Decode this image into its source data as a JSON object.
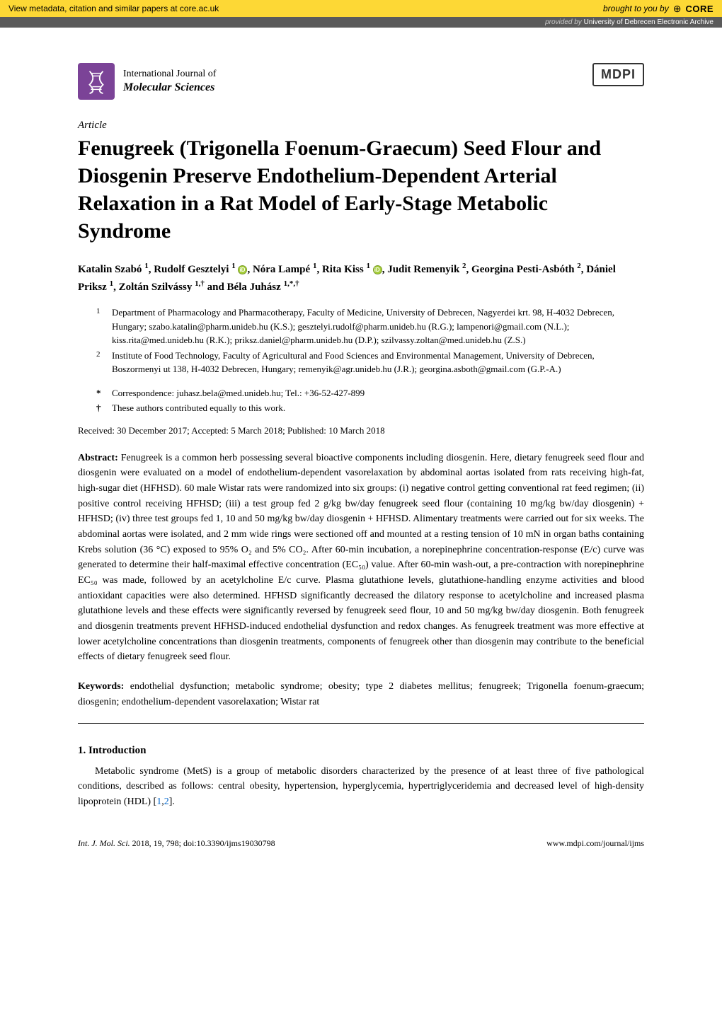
{
  "core_bar": {
    "left_text": "View metadata, citation and similar papers at core.ac.uk",
    "brought_by": "brought to you by",
    "logo": "CORE"
  },
  "provider_bar": {
    "prefix": "provided by",
    "name": "University of Debrecen Electronic Archive"
  },
  "journal": {
    "name_top": "International Journal of",
    "name_bottom": "Molecular Sciences"
  },
  "publisher": "MDPI",
  "article_label": "Article",
  "title": "Fenugreek (Trigonella Foenum-Graecum) Seed Flour and Diosgenin Preserve Endothelium-Dependent Arterial Relaxation in a Rat Model of Early-Stage Metabolic Syndrome",
  "authors_html": "Katalin Szabó <sup>1</sup>, Rudolf Gesztelyi <sup>1</sup> <span class='orcid'></span>, Nóra Lampé <sup>1</sup>, Rita Kiss <sup>1</sup> <span class='orcid'></span>, Judit Remenyik <sup>2</sup>, Georgina Pesti-Asbóth <sup>2</sup>, Dániel Priksz <sup>1</sup>, Zoltán Szilvássy <sup>1,†</sup> and Béla Juhász <sup>1,*,†</sup>",
  "affiliations": [
    {
      "num": "1",
      "text": "Department of Pharmacology and Pharmacotherapy, Faculty of Medicine, University of Debrecen, Nagyerdei krt. 98, H-4032 Debrecen, Hungary; szabo.katalin@pharm.unideb.hu (K.S.); gesztelyi.rudolf@pharm.unideb.hu (R.G.); lampenori@gmail.com (N.L.); kiss.rita@med.unideb.hu (R.K.); priksz.daniel@pharm.unideb.hu (D.P.); szilvassy.zoltan@med.unideb.hu (Z.S.)"
    },
    {
      "num": "2",
      "text": "Institute of Food Technology, Faculty of Agricultural and Food Sciences and Environmental Management, University of Debrecen, Boszormenyi ut 138, H-4032 Debrecen, Hungary; remenyik@agr.unideb.hu (J.R.); georgina.asboth@gmail.com (G.P.-A.)"
    }
  ],
  "correspondence": [
    {
      "sym": "*",
      "text": "Correspondence: juhasz.bela@med.unideb.hu; Tel.: +36-52-427-899"
    },
    {
      "sym": "†",
      "text": "These authors contributed equally to this work."
    }
  ],
  "dates": "Received: 30 December 2017; Accepted: 5 March 2018; Published: 10 March 2018",
  "abstract_label": "Abstract:",
  "abstract": "Fenugreek is a common herb possessing several bioactive components including diosgenin. Here, dietary fenugreek seed flour and diosgenin were evaluated on a model of endothelium-dependent vasorelaxation by abdominal aortas isolated from rats receiving high-fat, high-sugar diet (HFHSD). 60 male Wistar rats were randomized into six groups: (i) negative control getting conventional rat feed regimen; (ii) positive control receiving HFHSD; (iii) a test group fed 2 g/kg bw/day fenugreek seed flour (containing 10 mg/kg bw/day diosgenin) + HFHSD; (iv) three test groups fed 1, 10 and 50 mg/kg bw/day diosgenin + HFHSD. Alimentary treatments were carried out for six weeks. The abdominal aortas were isolated, and 2 mm wide rings were sectioned off and mounted at a resting tension of 10 mN in organ baths containing Krebs solution (36 °C) exposed to 95% O₂ and 5% CO₂. After 60-min incubation, a norepinephrine concentration-response (E/c) curve was generated to determine their half-maximal effective concentration (EC₅₀) value. After 60-min wash-out, a pre-contraction with norepinephrine EC₅₀ was made, followed by an acetylcholine E/c curve. Plasma glutathione levels, glutathione-handling enzyme activities and blood antioxidant capacities were also determined. HFHSD significantly decreased the dilatory response to acetylcholine and increased plasma glutathione levels and these effects were significantly reversed by fenugreek seed flour, 10 and 50 mg/kg bw/day diosgenin. Both fenugreek and diosgenin treatments prevent HFHSD-induced endothelial dysfunction and redox changes. As fenugreek treatment was more effective at lower acetylcholine concentrations than diosgenin treatments, components of fenugreek other than diosgenin may contribute to the beneficial effects of dietary fenugreek seed flour.",
  "keywords_label": "Keywords:",
  "keywords": "endothelial dysfunction; metabolic syndrome; obesity; type 2 diabetes mellitus; fenugreek; Trigonella foenum-graecum; diosgenin; endothelium-dependent vasorelaxation; Wistar rat",
  "section1_heading": "1. Introduction",
  "section1_body": "Metabolic syndrome (MetS) is a group of metabolic disorders characterized by the presence of at least three of five pathological conditions, described as follows: central obesity, hypertension, hyperglycemia, hypertriglyceridemia and decreased level of high-density lipoprotein (HDL) [",
  "ref1": "1",
  "refcomma": ",",
  "ref2": "2",
  "section1_body_end": "].",
  "footer": {
    "left_journal": "Int. J. Mol. Sci.",
    "left_rest": " 2018, 19, 798; doi:10.3390/ijms19030798",
    "right": "www.mdpi.com/journal/ijms"
  },
  "colors": {
    "core_bg": "#fdd835",
    "provider_bg": "#5a5a5a",
    "journal_icon_bg": "#7b4397",
    "link": "#0066cc",
    "orcid": "#a6ce39"
  }
}
